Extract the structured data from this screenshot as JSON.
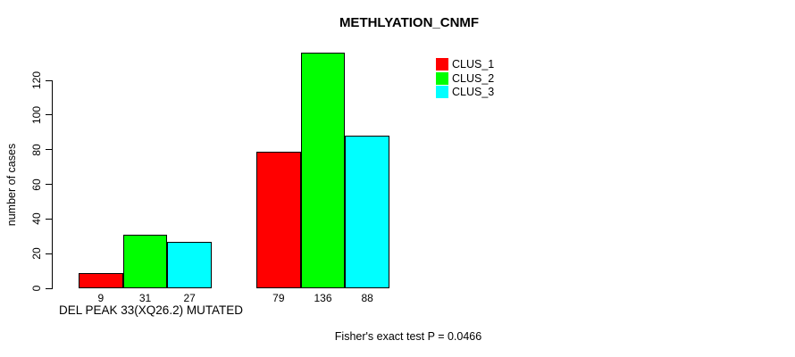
{
  "chart_data": {
    "type": "bar",
    "title": "METHLYATION_CNMF",
    "ylabel": "number of cases",
    "xlabel": "DEL PEAK 33(XQ26.2) MUTATED",
    "footnote": "Fisher's exact test P = 0.0466",
    "yticks": [
      0,
      20,
      40,
      60,
      80,
      100,
      120
    ],
    "ylim": [
      0,
      136
    ],
    "grid": false,
    "legend_position": "top-right",
    "series": [
      {
        "name": "CLUS_1",
        "color": "#FF0000",
        "values": [
          9,
          79
        ]
      },
      {
        "name": "CLUS_2",
        "color": "#00FF00",
        "values": [
          31,
          136
        ]
      },
      {
        "name": "CLUS_3",
        "color": "#00FFFF",
        "values": [
          27,
          88
        ]
      }
    ],
    "bar_value_labels": [
      [
        "9",
        "31",
        "27"
      ],
      [
        "79",
        "136",
        "88"
      ]
    ]
  }
}
